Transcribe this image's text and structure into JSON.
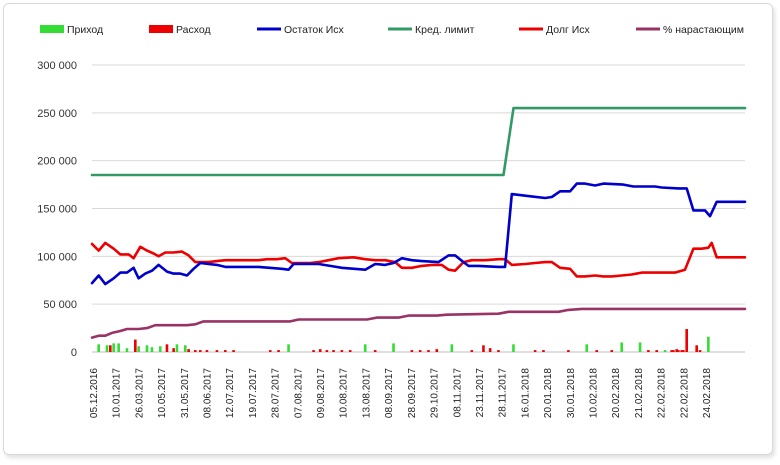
{
  "chart_data": {
    "type": "line",
    "ylim": [
      0,
      300000
    ],
    "yticks": [
      "0",
      "50 000",
      "100 000",
      "150 000",
      "200 000",
      "250 000",
      "300 000"
    ],
    "ytick_values": [
      0,
      50000,
      100000,
      150000,
      200000,
      250000,
      300000
    ],
    "grid": "horizontal",
    "legend_position": "top",
    "x_tick_labels": [
      "05.12.2016",
      "10.01.2017",
      "26.03.2017",
      "10.05.2017",
      "31.05.2017",
      "08.06.2017",
      "12.07.2017",
      "19.07.2017",
      "28.07.2017",
      "07.08.2017",
      "09.08.2017",
      "10.08.2017",
      "13.08.2017",
      "08.09.2017",
      "28.09.2017",
      "29.10.2017",
      "08.11.2017",
      "23.11.2017",
      "28.11.2017",
      "16.01.2018",
      "20.01.2018",
      "30.01.2018",
      "10.02.2018",
      "20.02.2018",
      "21.02.2018",
      "22.02.2018",
      "22.02.2018",
      "24.02.2018"
    ],
    "series": [
      {
        "name": "Приход",
        "kind": "bar",
        "color": "#33dd33",
        "values": [
          [
            4,
            8000
          ],
          [
            9,
            7000
          ],
          [
            13,
            9000
          ],
          [
            16,
            9000
          ],
          [
            21,
            4000
          ],
          [
            28,
            6000
          ],
          [
            33,
            7000
          ],
          [
            36,
            5000
          ],
          [
            41,
            6000
          ],
          [
            51,
            8000
          ],
          [
            56,
            7000
          ],
          [
            118,
            8000
          ],
          [
            164,
            8000
          ],
          [
            181,
            9000
          ],
          [
            216,
            8000
          ],
          [
            253,
            8000
          ],
          [
            297,
            8000
          ],
          [
            318,
            10000
          ],
          [
            329,
            10000
          ],
          [
            344,
            2000
          ],
          [
            370,
            16000
          ]
        ]
      },
      {
        "name": "Расход",
        "kind": "bar",
        "color": "#ee0000",
        "values": [
          [
            11,
            7000
          ],
          [
            26,
            13000
          ],
          [
            45,
            8000
          ],
          [
            49,
            4000
          ],
          [
            58,
            3000
          ],
          [
            62,
            2000
          ],
          [
            65,
            2000
          ],
          [
            69,
            2000
          ],
          [
            75,
            2000
          ],
          [
            80,
            2000
          ],
          [
            85,
            2000
          ],
          [
            107,
            2000
          ],
          [
            112,
            2000
          ],
          [
            133,
            2000
          ],
          [
            137,
            3000
          ],
          [
            141,
            2000
          ],
          [
            145,
            2000
          ],
          [
            150,
            2000
          ],
          [
            155,
            2000
          ],
          [
            170,
            2000
          ],
          [
            192,
            2000
          ],
          [
            197,
            2000
          ],
          [
            202,
            2000
          ],
          [
            207,
            3000
          ],
          [
            228,
            2000
          ],
          [
            235,
            7000
          ],
          [
            239,
            4000
          ],
          [
            244,
            2000
          ],
          [
            266,
            2000
          ],
          [
            271,
            2000
          ],
          [
            286,
            2000
          ],
          [
            303,
            2000
          ],
          [
            312,
            2000
          ],
          [
            334,
            2000
          ],
          [
            339,
            2000
          ],
          [
            349,
            2000
          ],
          [
            351,
            3000
          ],
          [
            354,
            2000
          ],
          [
            355,
            2000
          ],
          [
            348,
            2000
          ],
          [
            352,
            2000
          ],
          [
            357,
            24000
          ],
          [
            363,
            7000
          ],
          [
            365,
            2000
          ]
        ]
      },
      {
        "name": "Остаток Исх",
        "kind": "line",
        "color": "#0000cc",
        "points": [
          [
            0,
            72000
          ],
          [
            4,
            80000
          ],
          [
            8,
            71000
          ],
          [
            13,
            77000
          ],
          [
            17,
            83000
          ],
          [
            21,
            83000
          ],
          [
            25,
            88000
          ],
          [
            28,
            77000
          ],
          [
            32,
            82000
          ],
          [
            36,
            85000
          ],
          [
            40,
            91000
          ],
          [
            45,
            84000
          ],
          [
            49,
            82000
          ],
          [
            53,
            82000
          ],
          [
            57,
            80000
          ],
          [
            61,
            87000
          ],
          [
            65,
            93000
          ],
          [
            70,
            92000
          ],
          [
            75,
            91000
          ],
          [
            80,
            89000
          ],
          [
            100,
            89000
          ],
          [
            114,
            87000
          ],
          [
            118,
            86000
          ],
          [
            121,
            92000
          ],
          [
            126,
            92000
          ],
          [
            136,
            92000
          ],
          [
            143,
            90000
          ],
          [
            150,
            88000
          ],
          [
            164,
            86000
          ],
          [
            170,
            92000
          ],
          [
            176,
            91000
          ],
          [
            181,
            93000
          ],
          [
            186,
            98000
          ],
          [
            192,
            96000
          ],
          [
            198,
            95000
          ],
          [
            208,
            94000
          ],
          [
            214,
            101000
          ],
          [
            218,
            101000
          ],
          [
            223,
            94000
          ],
          [
            226,
            90000
          ],
          [
            232,
            90000
          ],
          [
            244,
            89000
          ],
          [
            248,
            89000
          ],
          [
            252,
            165000
          ],
          [
            262,
            163000
          ],
          [
            272,
            161000
          ],
          [
            276,
            162000
          ],
          [
            281,
            168000
          ],
          [
            287,
            168000
          ],
          [
            291,
            176000
          ],
          [
            296,
            176000
          ],
          [
            302,
            174000
          ],
          [
            307,
            176000
          ],
          [
            319,
            175000
          ],
          [
            325,
            173000
          ],
          [
            338,
            173000
          ],
          [
            342,
            172000
          ],
          [
            352,
            171000
          ],
          [
            357,
            171000
          ],
          [
            361,
            148000
          ],
          [
            368,
            148000
          ],
          [
            371,
            142000
          ],
          [
            375,
            157000
          ],
          [
            392,
            157000
          ]
        ]
      },
      {
        "name": "Кред. лимит",
        "kind": "line",
        "color": "#339966",
        "points": [
          [
            0,
            185000
          ],
          [
            247,
            185000
          ],
          [
            253,
            255000
          ],
          [
            392,
            255000
          ]
        ]
      },
      {
        "name": "Долг Исх",
        "kind": "line",
        "color": "#ee0000",
        "points": [
          [
            0,
            113000
          ],
          [
            4,
            106000
          ],
          [
            8,
            114000
          ],
          [
            13,
            108000
          ],
          [
            17,
            102000
          ],
          [
            22,
            102000
          ],
          [
            25,
            98000
          ],
          [
            29,
            110000
          ],
          [
            33,
            106000
          ],
          [
            37,
            103000
          ],
          [
            40,
            100000
          ],
          [
            44,
            104000
          ],
          [
            49,
            104000
          ],
          [
            54,
            105000
          ],
          [
            58,
            101000
          ],
          [
            62,
            94000
          ],
          [
            70,
            94000
          ],
          [
            75,
            95000
          ],
          [
            80,
            96000
          ],
          [
            86,
            96000
          ],
          [
            100,
            96000
          ],
          [
            105,
            97000
          ],
          [
            111,
            97000
          ],
          [
            116,
            98000
          ],
          [
            120,
            93000
          ],
          [
            126,
            93000
          ],
          [
            131,
            93000
          ],
          [
            136,
            94000
          ],
          [
            142,
            96000
          ],
          [
            148,
            98000
          ],
          [
            157,
            99000
          ],
          [
            164,
            97000
          ],
          [
            170,
            96000
          ],
          [
            176,
            96000
          ],
          [
            182,
            94000
          ],
          [
            186,
            88000
          ],
          [
            192,
            88000
          ],
          [
            198,
            90000
          ],
          [
            204,
            91000
          ],
          [
            210,
            91000
          ],
          [
            214,
            86000
          ],
          [
            218,
            85000
          ],
          [
            223,
            94000
          ],
          [
            228,
            96000
          ],
          [
            236,
            96000
          ],
          [
            244,
            97000
          ],
          [
            248,
            97000
          ],
          [
            252,
            91000
          ],
          [
            260,
            92000
          ],
          [
            266,
            93000
          ],
          [
            272,
            94000
          ],
          [
            276,
            94000
          ],
          [
            281,
            88000
          ],
          [
            287,
            87000
          ],
          [
            291,
            79000
          ],
          [
            296,
            79000
          ],
          [
            302,
            80000
          ],
          [
            307,
            79000
          ],
          [
            312,
            79000
          ],
          [
            318,
            80000
          ],
          [
            324,
            81000
          ],
          [
            330,
            83000
          ],
          [
            340,
            83000
          ],
          [
            350,
            83000
          ],
          [
            356,
            86000
          ],
          [
            361,
            108000
          ],
          [
            366,
            108000
          ],
          [
            370,
            109000
          ],
          [
            372,
            114000
          ],
          [
            375,
            99000
          ],
          [
            392,
            99000
          ]
        ]
      },
      {
        "name": "% нарастающим",
        "kind": "line",
        "color": "#993366",
        "points": [
          [
            0,
            15000
          ],
          [
            4,
            17000
          ],
          [
            8,
            17000
          ],
          [
            12,
            20000
          ],
          [
            17,
            22000
          ],
          [
            21,
            24000
          ],
          [
            28,
            24000
          ],
          [
            33,
            25000
          ],
          [
            38,
            28000
          ],
          [
            57,
            28000
          ],
          [
            62,
            29000
          ],
          [
            67,
            32000
          ],
          [
            119,
            32000
          ],
          [
            124,
            34000
          ],
          [
            165,
            34000
          ],
          [
            171,
            36000
          ],
          [
            184,
            36000
          ],
          [
            190,
            38000
          ],
          [
            207,
            38000
          ],
          [
            213,
            39000
          ],
          [
            244,
            40000
          ],
          [
            250,
            42000
          ],
          [
            280,
            42000
          ],
          [
            286,
            44000
          ],
          [
            294,
            45000
          ],
          [
            392,
            45000
          ]
        ]
      }
    ]
  }
}
